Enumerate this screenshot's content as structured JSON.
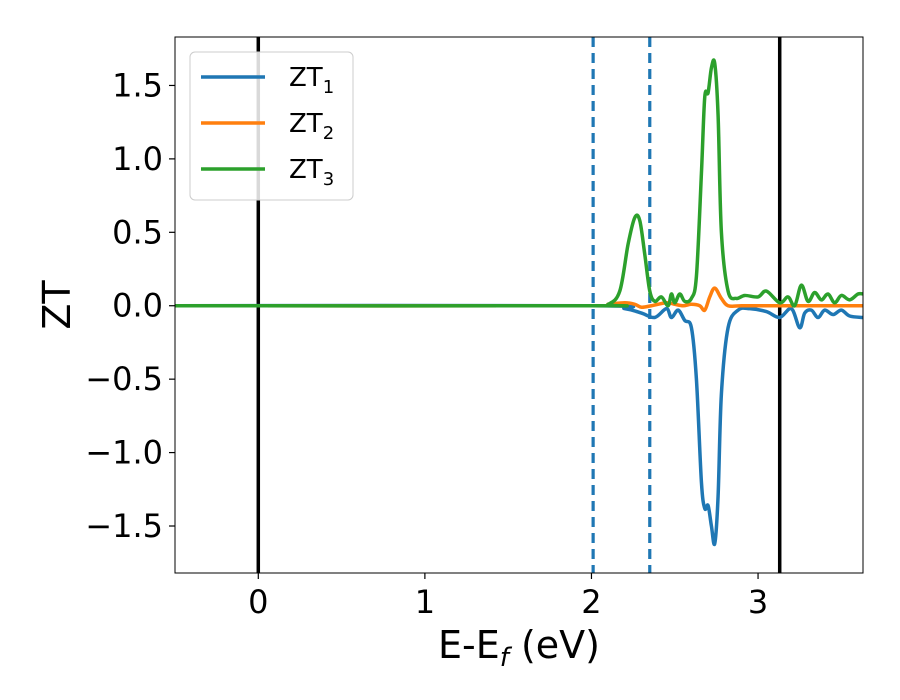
{
  "chart_data": {
    "type": "line",
    "xlabel": "E-E",
    "xlabel_sub": "f",
    "xlabel_unit": " (eV)",
    "ylabel": "ZT",
    "xlim": [
      -0.5,
      3.63
    ],
    "ylim": [
      -1.82,
      1.83
    ],
    "xticks": [
      0,
      1,
      2,
      3
    ],
    "xtick_labels": [
      "0",
      "1",
      "2",
      "3"
    ],
    "yticks": [
      -1.5,
      -1.0,
      -0.5,
      0.0,
      0.5,
      1.0,
      1.5
    ],
    "ytick_labels": [
      "−1.5",
      "−1.0",
      "−0.5",
      "0.0",
      "0.5",
      "1.0",
      "1.5"
    ],
    "grid": false,
    "legend_position": "top-left",
    "vertical_lines": [
      {
        "x": 0.0,
        "style": "solid",
        "color": "#000000"
      },
      {
        "x": 2.01,
        "style": "dashed",
        "color": "#1f77b4"
      },
      {
        "x": 2.35,
        "style": "dashed",
        "color": "#1f77b4"
      },
      {
        "x": 3.13,
        "style": "solid",
        "color": "#000000"
      }
    ],
    "series": [
      {
        "name": "ZT",
        "name_sub": "1",
        "color": "#1f77b4",
        "x": [
          -0.5,
          2.0,
          2.2,
          2.3,
          2.38,
          2.45,
          2.48,
          2.52,
          2.56,
          2.6,
          2.63,
          2.66,
          2.68,
          2.7,
          2.72,
          2.74,
          2.76,
          2.78,
          2.82,
          2.88,
          2.95,
          3.05,
          3.13,
          3.2,
          3.25,
          3.28,
          3.32,
          3.36,
          3.4,
          3.45,
          3.5,
          3.55,
          3.63
        ],
        "y": [
          0.0,
          0.0,
          -0.02,
          -0.05,
          -0.08,
          -0.02,
          -0.08,
          -0.03,
          -0.1,
          -0.15,
          -0.5,
          -1.2,
          -1.38,
          -1.36,
          -1.5,
          -1.62,
          -1.3,
          -0.6,
          -0.15,
          -0.03,
          -0.02,
          -0.04,
          -0.08,
          -0.02,
          -0.15,
          -0.05,
          -0.03,
          -0.08,
          -0.03,
          -0.06,
          -0.03,
          -0.07,
          -0.08
        ]
      },
      {
        "name": "ZT",
        "name_sub": "2",
        "color": "#ff7f0e",
        "x": [
          -0.5,
          2.0,
          2.1,
          2.2,
          2.26,
          2.3,
          2.36,
          2.45,
          2.5,
          2.55,
          2.6,
          2.65,
          2.68,
          2.71,
          2.74,
          2.78,
          2.82,
          2.9,
          3.0,
          3.63
        ],
        "y": [
          0.0,
          0.0,
          0.01,
          0.02,
          0.01,
          -0.01,
          0.0,
          0.02,
          0.01,
          0.0,
          0.01,
          0.0,
          -0.03,
          0.06,
          0.12,
          0.05,
          0.0,
          0.0,
          0.0,
          0.0
        ]
      },
      {
        "name": "ZT",
        "name_sub": "3",
        "color": "#2ca02c",
        "x": [
          -0.5,
          2.0,
          2.1,
          2.17,
          2.22,
          2.26,
          2.29,
          2.32,
          2.35,
          2.38,
          2.42,
          2.46,
          2.48,
          2.5,
          2.53,
          2.56,
          2.6,
          2.63,
          2.66,
          2.68,
          2.7,
          2.72,
          2.74,
          2.76,
          2.78,
          2.82,
          2.87,
          2.92,
          3.0,
          3.05,
          3.13,
          3.18,
          3.22,
          3.26,
          3.3,
          3.34,
          3.38,
          3.42,
          3.46,
          3.5,
          3.55,
          3.6,
          3.63
        ],
        "y": [
          0.0,
          0.0,
          0.01,
          0.1,
          0.42,
          0.6,
          0.58,
          0.35,
          0.1,
          0.03,
          0.06,
          0.0,
          0.08,
          0.02,
          0.08,
          0.03,
          0.05,
          0.2,
          0.9,
          1.42,
          1.45,
          1.62,
          1.65,
          1.3,
          0.5,
          0.1,
          0.05,
          0.07,
          0.06,
          0.1,
          0.02,
          0.06,
          0.0,
          0.14,
          0.03,
          0.09,
          0.04,
          0.08,
          0.02,
          0.07,
          0.04,
          0.08,
          0.08
        ]
      }
    ]
  }
}
